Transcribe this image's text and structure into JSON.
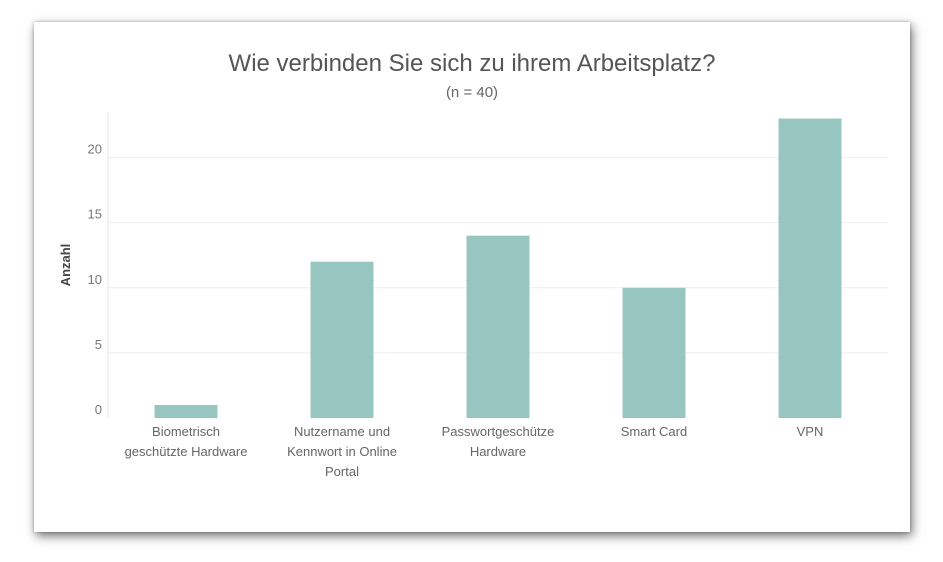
{
  "chart_data": {
    "type": "bar",
    "title": "Wie verbinden Sie sich zu ihrem Arbeitsplatz?",
    "subtitle": "(n = 40)",
    "ylabel": "Anzahl",
    "xlabel": "",
    "categories": [
      [
        "Biometrisch",
        "geschützte Hardware"
      ],
      [
        "Nutzername und",
        "Kennwort in Online",
        "Portal"
      ],
      [
        "Passwortgeschütze",
        "Hardware"
      ],
      [
        "Smart Card"
      ],
      [
        "VPN"
      ]
    ],
    "values": [
      1,
      12,
      14,
      10,
      23
    ],
    "ylim": [
      0,
      23.5
    ],
    "yticks": [
      0,
      5,
      10,
      15,
      20
    ],
    "grid": true,
    "bar_color": "#97c6c1",
    "grid_color": "#eeeeee"
  }
}
